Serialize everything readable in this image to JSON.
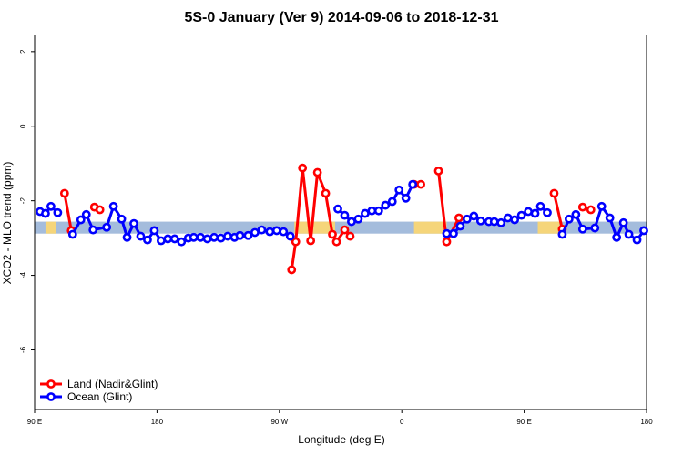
{
  "chart_data": {
    "type": "line",
    "title": "5S-0 January (Ver 9)   2014-09-06 to 2018-12-31",
    "x_label": "Longitude (deg E)",
    "y_label": "XCO2 - MLO trend (ppm)",
    "xlim": [
      90,
      540
    ],
    "ylim": [
      -7.6,
      2.46
    ],
    "xticks": [
      {
        "value": 90,
        "label": "90 E"
      },
      180,
      {
        "value": 270,
        "label": "90 W"
      },
      {
        "value": 360,
        "label": "0"
      },
      {
        "value": 450,
        "label": "90 E"
      },
      {
        "value": 540,
        "label": "180"
      }
    ],
    "yticks": [
      2,
      0,
      -2,
      -4,
      -6
    ],
    "band": [
      -2.88,
      -2.56
    ],
    "band_color": "#a4bcdc",
    "land_spans": [
      [
        98,
        106
      ],
      [
        281,
        311
      ],
      [
        369,
        393
      ],
      [
        460,
        476
      ]
    ],
    "land_color": "#f5d57a",
    "legend": "bottom-left",
    "series": [
      {
        "name": "Land (Nadir&Glint)",
        "color": "#ff0000",
        "x": [
          112,
          117,
          125,
          134,
          138,
          208,
          279,
          282,
          287,
          293,
          298,
          304,
          309,
          312,
          318,
          322,
          345,
          369,
          374,
          380,
          387,
          393,
          402,
          437,
          472,
          478,
          485,
          493,
          499
        ],
        "values": [
          -1.8,
          -2.8,
          null,
          -2.17,
          -2.24,
          null,
          -3.85,
          -3.1,
          -1.12,
          -3.07,
          -1.24,
          -1.8,
          -2.9,
          -3.1,
          -2.78,
          -2.95,
          null,
          -1.56,
          -1.56,
          null,
          -1.2,
          -3.1,
          -2.46,
          null,
          -1.8,
          -2.76,
          null,
          -2.17,
          -2.24
        ]
      },
      {
        "name": "Ocean (Glint)",
        "color": "#0000ff",
        "x": [
          94,
          98,
          102,
          107,
          112,
          118,
          124,
          128,
          133,
          143,
          148,
          154,
          158,
          163,
          168,
          173,
          178,
          183,
          188,
          193,
          198,
          203,
          207,
          212,
          217,
          222,
          227,
          232,
          237,
          241,
          247,
          252,
          257,
          263,
          268,
          273,
          278,
          295,
          313,
          318,
          323,
          328,
          333,
          338,
          343,
          348,
          353,
          358,
          363,
          368,
          380,
          393,
          398,
          403,
          408,
          413,
          418,
          424,
          428,
          433,
          438,
          443,
          448,
          453,
          458,
          462,
          467,
          472,
          478,
          483,
          488,
          493,
          502,
          507,
          513,
          518,
          523,
          527,
          533,
          538
        ],
        "values": [
          -2.29,
          -2.34,
          -2.15,
          -2.32,
          null,
          -2.9,
          -2.51,
          -2.37,
          -2.78,
          -2.71,
          -2.15,
          -2.49,
          -2.98,
          -2.61,
          -2.95,
          -3.05,
          -2.8,
          -3.07,
          -3.02,
          -3.02,
          -3.1,
          -3.0,
          -2.98,
          -2.98,
          -3.02,
          -2.98,
          -3.0,
          -2.95,
          -2.98,
          -2.93,
          -2.93,
          -2.85,
          -2.78,
          -2.83,
          -2.8,
          -2.83,
          -2.95,
          null,
          -2.22,
          -2.39,
          -2.56,
          -2.49,
          -2.34,
          -2.27,
          -2.27,
          -2.12,
          -2.02,
          -1.71,
          -1.93,
          -1.56,
          null,
          -2.88,
          -2.88,
          -2.68,
          -2.49,
          -2.41,
          -2.54,
          -2.56,
          -2.56,
          -2.59,
          -2.46,
          -2.51,
          -2.39,
          -2.29,
          -2.34,
          -2.15,
          -2.32,
          null,
          -2.9,
          -2.49,
          -2.37,
          -2.76,
          -2.73,
          -2.15,
          -2.46,
          -2.98,
          -2.59,
          -2.9,
          -3.05,
          -2.8
        ]
      }
    ]
  }
}
